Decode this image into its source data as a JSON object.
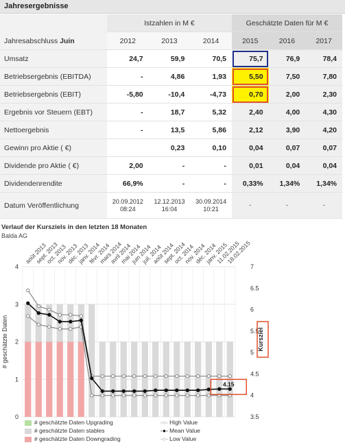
{
  "title": "Jahresergebnisse",
  "table": {
    "header_actual": "Istzahlen in M €",
    "header_estimated": "Geschätzte Daten für M €",
    "fiscal_label_prefix": "Jahresabschluss",
    "fiscal_label_month": "Juin",
    "years": [
      "2012",
      "2013",
      "2014",
      "2015",
      "2016",
      "2017"
    ],
    "rows": [
      {
        "label": "Umsatz",
        "values": [
          "24,7",
          "59,9",
          "70,5",
          "75,7",
          "76,9",
          "78,4"
        ]
      },
      {
        "label": "Betriebsergebnis (EBITDA)",
        "values": [
          "-",
          "4,86",
          "1,93",
          "5,50",
          "7,50",
          "7,80"
        ]
      },
      {
        "label": "Betriebsergebnis (EBIT)",
        "values": [
          "-5,80",
          "-10,4",
          "-4,73",
          "0,70",
          "2,00",
          "2,30"
        ]
      },
      {
        "label": "Ergebnis vor Steuern (EBT)",
        "values": [
          "-",
          "18,7",
          "5,32",
          "2,40",
          "4,00",
          "4,30"
        ]
      },
      {
        "label": "Nettoergebnis",
        "values": [
          "-",
          "13,5",
          "5,86",
          "2,12",
          "3,90",
          "4,20"
        ]
      },
      {
        "label": "Gewinn pro Aktie ( €)",
        "values": [
          "",
          "0,23",
          "0,10",
          "0,04",
          "0,07",
          "0,07"
        ]
      },
      {
        "label": "Dividende pro Aktie ( €)",
        "values": [
          "2,00",
          "-",
          "-",
          "0,01",
          "0,04",
          "0,04"
        ]
      },
      {
        "label": "Dividendenrendite",
        "values": [
          "66,9%",
          "-",
          "-",
          "0,33%",
          "1,34%",
          "1,34%"
        ]
      }
    ],
    "publication_label": "Datum Veröffentlichung",
    "publication_dates": [
      {
        "date": "20.09.2012",
        "time": "08:24"
      },
      {
        "date": "12.12.2013",
        "time": "16:04"
      },
      {
        "date": "30.09.2014",
        "time": "10:21"
      },
      {
        "date": "-",
        "time": ""
      },
      {
        "date": "-",
        "time": ""
      },
      {
        "date": "-",
        "time": ""
      }
    ]
  },
  "chart": {
    "title": "Verlauf der Kursziels in den letzten 18 Monaten",
    "subtitle": "Balda AG",
    "left_axis_label": "# geschätzte Daten",
    "right_axis_label": "Kursziel",
    "last_value_label": "4.15",
    "legend": {
      "upgrading": "# geschätzte Daten Upgrading",
      "stables": "# geschätzte Daten stables",
      "downgrading": "# geschätzte Daten Downgrading",
      "high": "High Value",
      "mean": "Mean Value",
      "low": "Low Value"
    },
    "colors": {
      "upgrading": "#b6dfa0",
      "stables": "#d9d9d9",
      "downgrading": "#f2a7a7",
      "line": "#111111",
      "range": "#888888",
      "highlight": "#e0502a"
    }
  },
  "chart_data": {
    "type": "bar",
    "categories": [
      "août 2013",
      "sept. 2013",
      "oct. 2013",
      "nov. 2013",
      "déc. 2013",
      "janv. 2014",
      "févr. 2014",
      "mars 2014",
      "avril 2014",
      "mai 2014",
      "juin 2014",
      "juil. 2014",
      "août 2014",
      "sept. 2014",
      "oct. 2014",
      "nov. 2014",
      "déc. 2014",
      "janv. 2015",
      "11.02.2015",
      "18.02.2015"
    ],
    "series": [
      {
        "name": "# geschätzte Daten Upgrading",
        "axis": "left",
        "values": [
          0,
          0,
          0,
          0,
          0,
          0,
          0,
          0,
          0,
          0,
          0,
          0,
          0,
          0,
          0,
          0,
          0,
          0,
          0,
          0
        ]
      },
      {
        "name": "# geschätzte Daten stables",
        "axis": "left",
        "values": [
          1,
          1,
          1,
          1,
          1,
          1,
          3,
          2,
          2,
          2,
          2,
          2,
          2,
          2,
          2,
          2,
          2,
          2,
          2,
          2
        ]
      },
      {
        "name": "# geschätzte Daten Downgrading",
        "axis": "left",
        "values": [
          2,
          2,
          2,
          2,
          2,
          2,
          0,
          0,
          0,
          0,
          0,
          0,
          0,
          0,
          0,
          0,
          0,
          0,
          0,
          0
        ]
      },
      {
        "name": "High Value",
        "axis": "right",
        "values": [
          6.45,
          6.08,
          6.0,
          5.88,
          5.88,
          5.85,
          4.45,
          4.45,
          4.45,
          4.45,
          4.45,
          4.45,
          4.45,
          4.45,
          4.45,
          4.45,
          4.45,
          4.45,
          4.45,
          4.45
        ]
      },
      {
        "name": "Mean Value",
        "axis": "right",
        "values": [
          6.15,
          5.92,
          5.88,
          5.72,
          5.72,
          5.75,
          4.4,
          4.1,
          4.1,
          4.1,
          4.1,
          4.1,
          4.12,
          4.12,
          4.12,
          4.12,
          4.12,
          4.14,
          4.15,
          4.15
        ]
      },
      {
        "name": "Low Value",
        "axis": "right",
        "values": [
          5.85,
          5.65,
          5.6,
          5.55,
          5.55,
          5.6,
          4.0,
          4.0,
          4.0,
          4.0,
          4.0,
          4.0,
          4.0,
          4.0,
          4.0,
          4.0,
          4.0,
          4.0,
          4.0,
          4.0
        ]
      }
    ],
    "left_ylim": [
      0,
      4
    ],
    "left_ticks": [
      "0",
      "1",
      "2",
      "3",
      "4"
    ],
    "right_ylim": [
      3.5,
      7
    ],
    "right_ticks": [
      "3.5",
      "4",
      "4.5",
      "5",
      "5.5",
      "6",
      "6.5",
      "7"
    ],
    "ylabel": "# geschätzte Daten",
    "y2label": "Kursziel",
    "grid": true,
    "legend_position": "bottom"
  }
}
